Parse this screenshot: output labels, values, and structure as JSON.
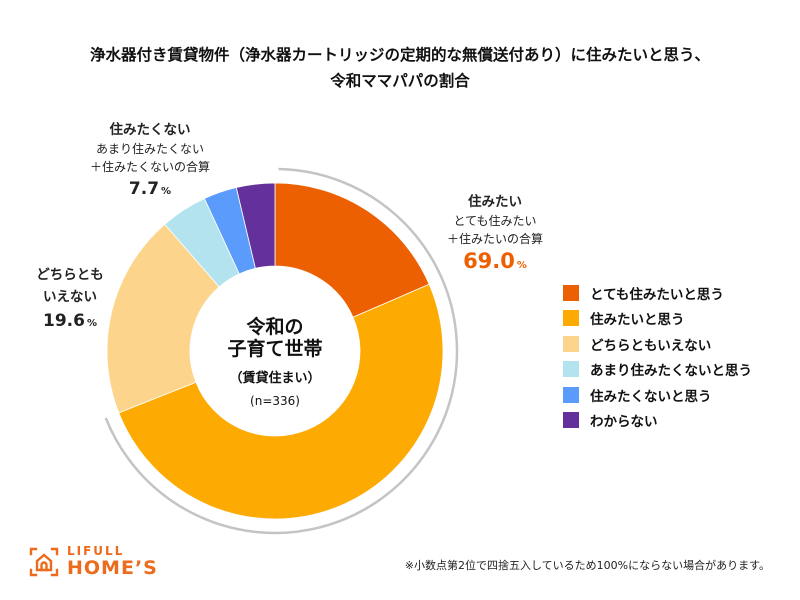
{
  "chart_data": {
    "type": "pie",
    "subtype": "donut",
    "title_lines": [
      "浄水器付き賃貸物件（浄水器カートリッジの定期的な無償送付あり）に住みたいと思う、",
      "令和ママパパの割合"
    ],
    "center_label": {
      "line1": "令和の",
      "line2": "子育て世帯",
      "line3": "（賃貸住まい）",
      "sample": "(n=336)"
    },
    "slices": [
      {
        "label": "とても住みたいと思う",
        "value": 18.5,
        "color": "#ec6002"
      },
      {
        "label": "住みたいと思う",
        "value": 50.5,
        "color": "#fdaa02"
      },
      {
        "label": "どちらともいえない",
        "value": 19.6,
        "color": "#fdd48b"
      },
      {
        "label": "あまり住みたくないと思う",
        "value": 4.5,
        "color": "#b3e3ef"
      },
      {
        "label": "住みたくないと思う",
        "value": 3.2,
        "color": "#5b9bfb"
      },
      {
        "label": "わからない",
        "value": 3.7,
        "color": "#64309b"
      }
    ],
    "annotations": {
      "want": {
        "head": "住みたい",
        "sub1": "とても住みたい",
        "sub2": "＋住みたいの合算",
        "value": "69.0",
        "unit": "%"
      },
      "not_want": {
        "head": "住みたくない",
        "sub1": "あまり住みたくない",
        "sub2": "＋住みたくないの合算",
        "value": "7.7",
        "unit": "%"
      },
      "neither": {
        "head1": "どちらとも",
        "head2": "いえない",
        "value": "19.6",
        "unit": "%"
      }
    },
    "bracket_arc_percent": 69.0,
    "legend_position": "right"
  },
  "logo": {
    "top": "LIFULL",
    "bottom": "HOME’S",
    "color": "#ec6b1c"
  },
  "footnote": "※小数点第2位で四捨五入しているため100%にならない場合があります。"
}
